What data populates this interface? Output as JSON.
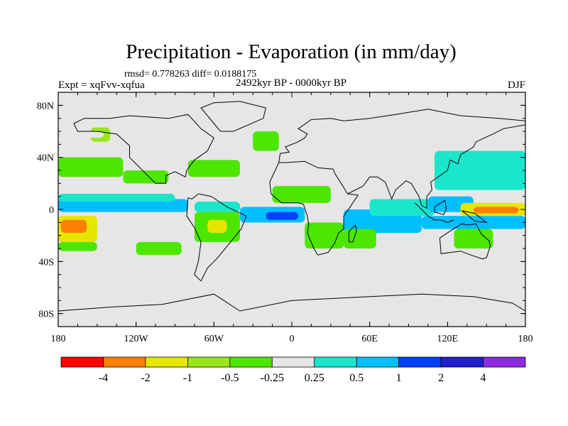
{
  "chart_data": {
    "type": "heatmap",
    "title": "Precipitation - Evaporation (in mm/day)",
    "stats": "rmsd= 0.778263 diff= 0.0188175",
    "left_label": "Expt = xqFvv-xqfua",
    "center_label": "2492kyr BP - 0000kyr BP",
    "right_label": "DJF",
    "lon_range": [
      -180,
      180
    ],
    "lat_range": [
      -90,
      90
    ],
    "x_ticks": [
      {
        "value": -180,
        "label": "180"
      },
      {
        "value": -120,
        "label": "120W"
      },
      {
        "value": -60,
        "label": "60W"
      },
      {
        "value": 0,
        "label": "0"
      },
      {
        "value": 60,
        "label": "60E"
      },
      {
        "value": 120,
        "label": "120E"
      },
      {
        "value": 180,
        "label": "180"
      }
    ],
    "y_ticks": [
      {
        "value": 80,
        "label": "80N"
      },
      {
        "value": 40,
        "label": "40N"
      },
      {
        "value": 0,
        "label": "0"
      },
      {
        "value": -40,
        "label": "40S"
      },
      {
        "value": -80,
        "label": "80S"
      }
    ],
    "colorbar": {
      "colors": [
        "#ff0000",
        "#ff7f00",
        "#ffcc00",
        "#e6e600",
        "#99e619",
        "#4ce600",
        "#1ae632",
        "#e6e6e6",
        "#1ae6cc",
        "#00bfff",
        "#0080ff",
        "#0040ff",
        "#2020cc",
        "#8a2be2"
      ],
      "labels": [
        "-4",
        "-2",
        "-1",
        "-0.5",
        "-0.25",
        "0.25",
        "0.5",
        "1",
        "2",
        "4"
      ]
    },
    "regions": [
      {
        "name": "north-pacific-sw-band",
        "lon1": -180,
        "lat1": 25,
        "lon2": -130,
        "lat2": 40,
        "value": -0.3
      },
      {
        "name": "north-pacific-sw-band-east",
        "lon1": -130,
        "lat1": 20,
        "lon2": -95,
        "lat2": 30,
        "value": -0.3
      },
      {
        "name": "alaska-bay",
        "lon1": -155,
        "lat1": 52,
        "lon2": -140,
        "lat2": 63,
        "value": -0.7
      },
      {
        "name": "alaska-bay-wet",
        "lon1": -160,
        "lat1": 55,
        "lon2": -145,
        "lat2": 60,
        "value": 0.4
      },
      {
        "name": "pacific-itcz-wet",
        "lon1": -180,
        "lat1": -2,
        "lon2": -80,
        "lat2": 8,
        "value": 1.5
      },
      {
        "name": "pacific-itcz-edge",
        "lon1": -180,
        "lat1": 6,
        "lon2": -90,
        "lat2": 12,
        "value": 0.6
      },
      {
        "name": "south-pacific-dry",
        "lon1": -180,
        "lat1": -25,
        "lon2": -150,
        "lat2": -5,
        "value": -1.5
      },
      {
        "name": "south-pacific-dry-core",
        "lon1": -178,
        "lat1": -18,
        "lon2": -158,
        "lat2": -8,
        "value": -3.0
      },
      {
        "name": "south-pacific-wet",
        "lon1": -150,
        "lat1": -25,
        "lon2": -95,
        "lat2": -8,
        "value": 0.4
      },
      {
        "name": "south-pacific-green",
        "lon1": -180,
        "lat1": -32,
        "lon2": -150,
        "lat2": -25,
        "value": -0.3
      },
      {
        "name": "east-pacific-green",
        "lon1": -120,
        "lat1": -35,
        "lon2": -85,
        "lat2": -25,
        "value": -0.3
      },
      {
        "name": "amazon-dry",
        "lon1": -75,
        "lat1": -25,
        "lon2": -40,
        "lat2": -2,
        "value": -0.4
      },
      {
        "name": "amazon-core",
        "lon1": -65,
        "lat1": -18,
        "lon2": -50,
        "lat2": -8,
        "value": -1.2
      },
      {
        "name": "atlantic-itcz-wet",
        "lon1": -40,
        "lat1": -10,
        "lon2": 10,
        "lat2": 2,
        "value": 1.5
      },
      {
        "name": "atlantic-itcz-core",
        "lon1": -20,
        "lat1": -8,
        "lon2": 5,
        "lat2": -2,
        "value": 2.5
      },
      {
        "name": "caribbean-wet",
        "lon1": -75,
        "lat1": -2,
        "lon2": -40,
        "lat2": 6,
        "value": 0.6
      },
      {
        "name": "north-atlantic-band",
        "lon1": -80,
        "lat1": 25,
        "lon2": -40,
        "lat2": 38,
        "value": -0.3
      },
      {
        "name": "greenland-wet",
        "lon1": -55,
        "lat1": 60,
        "lon2": -30,
        "lat2": 72,
        "value": 0.4
      },
      {
        "name": "north-atlantic-green",
        "lon1": -30,
        "lat1": 45,
        "lon2": -10,
        "lat2": 60,
        "value": -0.3
      },
      {
        "name": "sahel-dry",
        "lon1": -15,
        "lat1": 5,
        "lon2": 30,
        "lat2": 18,
        "value": -0.4
      },
      {
        "name": "indian-ocean-wet",
        "lon1": 40,
        "lat1": -18,
        "lon2": 100,
        "lat2": 0,
        "value": 1.6
      },
      {
        "name": "indian-ocean-wet2",
        "lon1": 60,
        "lat1": -5,
        "lon2": 110,
        "lat2": 8,
        "value": 0.7
      },
      {
        "name": "south-africa-dry",
        "lon1": 10,
        "lat1": -30,
        "lon2": 40,
        "lat2": -10,
        "value": -0.4
      },
      {
        "name": "madagascar-dry",
        "lon1": 40,
        "lat1": -30,
        "lon2": 65,
        "lat2": -15,
        "value": -0.5
      },
      {
        "name": "maritime-wet",
        "lon1": 100,
        "lat1": -15,
        "lon2": 180,
        "lat2": -5,
        "value": 1.4
      },
      {
        "name": "maritime-wet-north",
        "lon1": 105,
        "lat1": -2,
        "lon2": 140,
        "lat2": 10,
        "value": 1.2
      },
      {
        "name": "west-pacific-dry",
        "lon1": 130,
        "lat1": -5,
        "lon2": 180,
        "lat2": 5,
        "value": -1.5
      },
      {
        "name": "west-pacific-dry-core",
        "lon1": 140,
        "lat1": -3,
        "lon2": 175,
        "lat2": 2,
        "value": -3.5
      },
      {
        "name": "north-west-pacific-wet",
        "lon1": 110,
        "lat1": 15,
        "lon2": 180,
        "lat2": 45,
        "value": 0.5
      },
      {
        "name": "nw-pacific-core",
        "lon1": 130,
        "lat1": 20,
        "lon2": 175,
        "lat2": 35,
        "value": 0.9
      },
      {
        "name": "australia-dry",
        "lon1": 125,
        "lat1": -30,
        "lon2": 155,
        "lat2": -15,
        "value": -0.4
      },
      {
        "name": "southern-ocean-bits",
        "lon1": -180,
        "lat1": -65,
        "lon2": -160,
        "lat2": -55,
        "value": 0.3
      },
      {
        "name": "southern-ocean-bits2",
        "lon1": 60,
        "lat1": -62,
        "lon2": 90,
        "lat2": -52,
        "value": 0.3
      },
      {
        "name": "southern-ocean-bits3",
        "lon1": 150,
        "lat1": -62,
        "lon2": 180,
        "lat2": -50,
        "value": 0.3
      }
    ]
  }
}
